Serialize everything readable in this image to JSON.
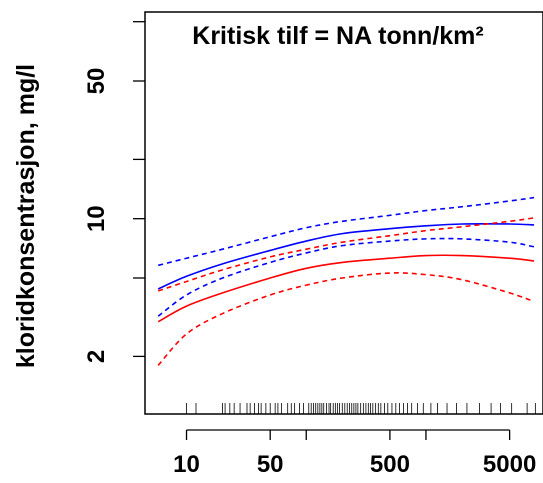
{
  "chart_data": {
    "type": "line",
    "title": "Kritisk tilf = NA tonn/km²",
    "xlabel": "",
    "ylabel": "kloridkonsentrasjon, mg/l",
    "x_scale": "log",
    "y_scale": "log",
    "xlim": [
      4.5,
      9500
    ],
    "ylim": [
      1.02,
      112
    ],
    "x_tick_values": [
      10,
      50,
      500,
      5000
    ],
    "x_tick_labels": [
      "10",
      "50",
      "500",
      "5000"
    ],
    "x_minor_ticks": [
      100,
      1000
    ],
    "y_tick_values": [
      2,
      10,
      50
    ],
    "y_tick_labels": [
      "2",
      "10",
      "50"
    ],
    "y_minor_ticks": [
      5,
      20,
      100
    ],
    "grid": false,
    "series": [
      {
        "color": "#0000ff",
        "style": "solid",
        "points": [
          [
            5.8,
            4.4
          ],
          [
            10,
            5.1
          ],
          [
            20,
            5.9
          ],
          [
            50,
            6.9
          ],
          [
            100,
            7.7
          ],
          [
            200,
            8.4
          ],
          [
            500,
            8.9
          ],
          [
            1000,
            9.2
          ],
          [
            2000,
            9.4
          ],
          [
            5000,
            9.4
          ],
          [
            8000,
            9.3
          ]
        ]
      },
      {
        "color": "#0000ff",
        "style": "dashed",
        "points": [
          [
            5.8,
            5.8
          ],
          [
            10,
            6.3
          ],
          [
            20,
            7.0
          ],
          [
            50,
            8.1
          ],
          [
            100,
            9.0
          ],
          [
            200,
            9.7
          ],
          [
            500,
            10.4
          ],
          [
            1000,
            11.0
          ],
          [
            2000,
            11.5
          ],
          [
            5000,
            12.3
          ],
          [
            8000,
            12.8
          ]
        ]
      },
      {
        "color": "#0000ff",
        "style": "dashed",
        "points": [
          [
            5.8,
            3.2
          ],
          [
            10,
            4.1
          ],
          [
            20,
            5.0
          ],
          [
            50,
            6.0
          ],
          [
            100,
            6.7
          ],
          [
            200,
            7.3
          ],
          [
            500,
            7.7
          ],
          [
            1000,
            7.9
          ],
          [
            2000,
            7.9
          ],
          [
            5000,
            7.6
          ],
          [
            8000,
            7.2
          ]
        ]
      },
      {
        "color": "#ff0000",
        "style": "solid",
        "points": [
          [
            5.8,
            3.0
          ],
          [
            10,
            3.6
          ],
          [
            20,
            4.2
          ],
          [
            50,
            5.0
          ],
          [
            100,
            5.6
          ],
          [
            200,
            6.0
          ],
          [
            500,
            6.3
          ],
          [
            1000,
            6.5
          ],
          [
            2000,
            6.5
          ],
          [
            5000,
            6.3
          ],
          [
            8000,
            6.1
          ]
        ]
      },
      {
        "color": "#ff0000",
        "style": "dashed",
        "points": [
          [
            5.8,
            4.3
          ],
          [
            10,
            4.8
          ],
          [
            20,
            5.5
          ],
          [
            50,
            6.4
          ],
          [
            100,
            7.0
          ],
          [
            200,
            7.6
          ],
          [
            500,
            8.2
          ],
          [
            1000,
            8.7
          ],
          [
            2000,
            9.1
          ],
          [
            5000,
            9.7
          ],
          [
            8000,
            10.1
          ]
        ]
      },
      {
        "color": "#ff0000",
        "style": "dashed",
        "points": [
          [
            5.8,
            1.8
          ],
          [
            10,
            2.6
          ],
          [
            20,
            3.3
          ],
          [
            50,
            4.1
          ],
          [
            100,
            4.6
          ],
          [
            200,
            5.0
          ],
          [
            500,
            5.3
          ],
          [
            1000,
            5.2
          ],
          [
            2000,
            4.9
          ],
          [
            5000,
            4.2
          ],
          [
            8000,
            3.8
          ]
        ]
      }
    ],
    "rug_x": [
      10,
      12,
      20,
      21,
      23,
      25,
      28,
      32,
      34,
      37,
      40,
      42,
      46,
      50,
      55,
      58,
      62,
      70,
      75,
      80,
      88,
      95,
      105,
      110,
      115,
      120,
      125,
      130,
      135,
      140,
      148,
      155,
      160,
      168,
      175,
      182,
      190,
      200,
      210,
      220,
      230,
      240,
      250,
      260,
      270,
      285,
      300,
      315,
      330,
      345,
      360,
      380,
      400,
      420,
      450,
      480,
      520,
      560,
      600,
      650,
      700,
      760,
      850,
      950,
      1100,
      1250,
      1500,
      1800,
      2200,
      2800,
      3500,
      4200,
      5200,
      7000,
      8200
    ]
  }
}
